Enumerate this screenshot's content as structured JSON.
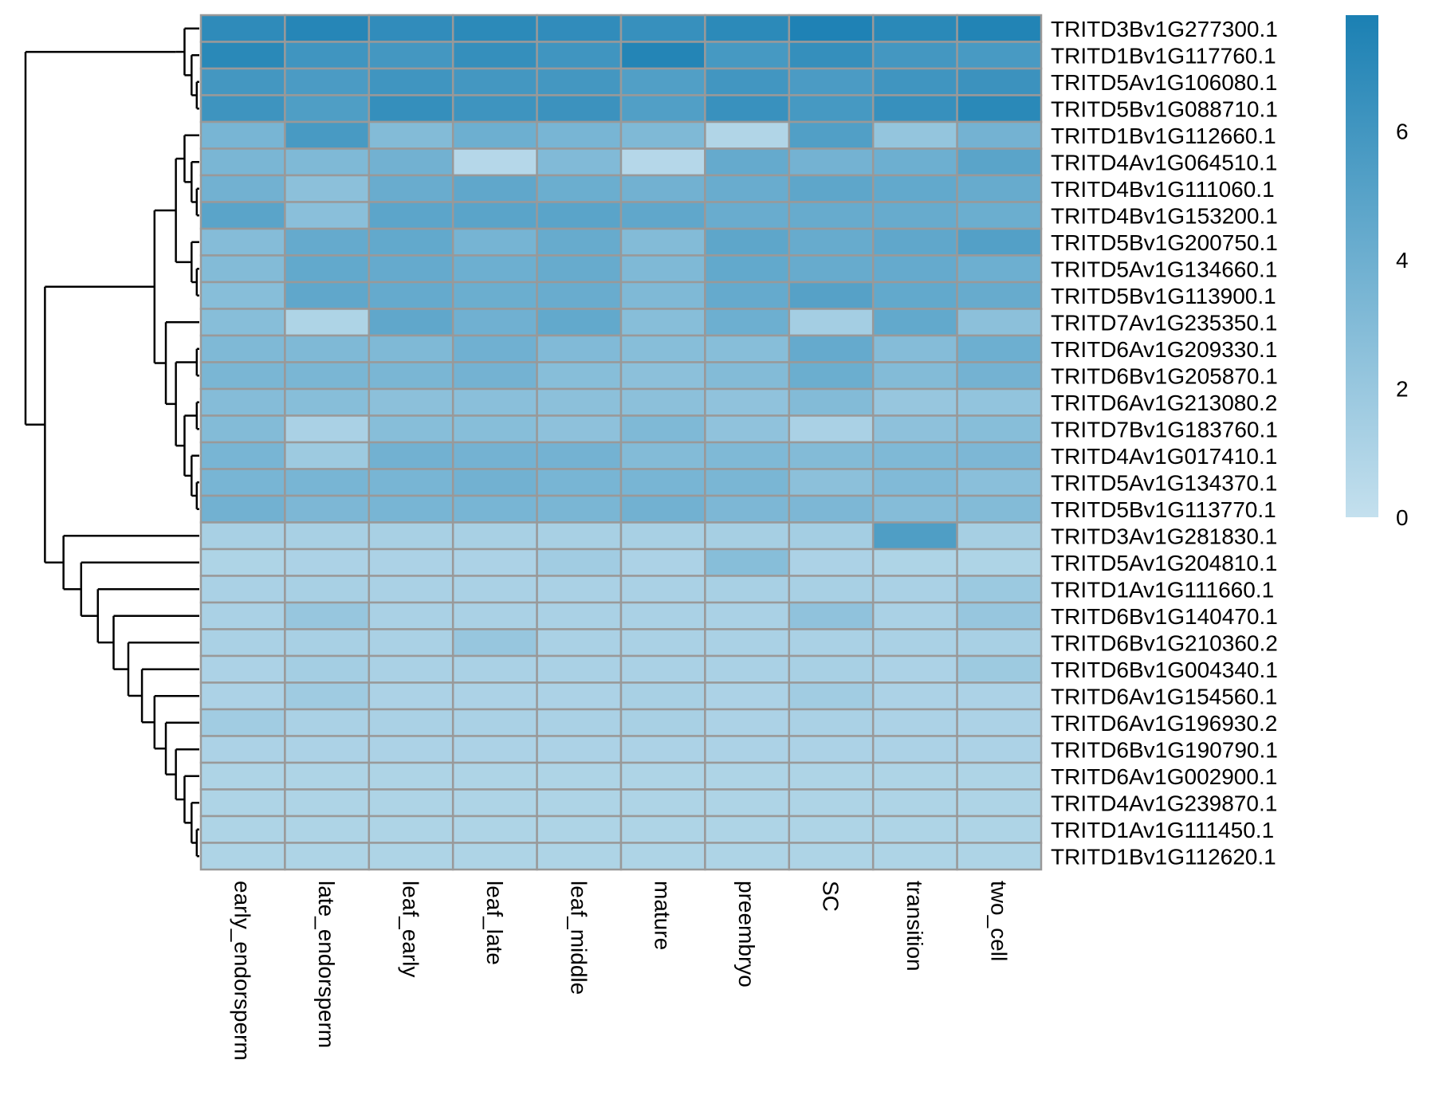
{
  "chart_data": {
    "type": "heatmap",
    "title": "",
    "columns": [
      "early_endorsperm",
      "late_endorsperm",
      "leaf_early",
      "leaf_late",
      "leaf_middle",
      "mature",
      "preembryo",
      "SC",
      "transition",
      "two_cell"
    ],
    "rows": [
      "TRITD3Bv1G277300.1",
      "TRITD1Bv1G117760.1",
      "TRITD5Av1G106080.1",
      "TRITD5Bv1G088710.1",
      "TRITD1Bv1G112660.1",
      "TRITD4Av1G064510.1",
      "TRITD4Bv1G111060.1",
      "TRITD4Bv1G153200.1",
      "TRITD5Bv1G200750.1",
      "TRITD5Av1G134660.1",
      "TRITD5Bv1G113900.1",
      "TRITD7Av1G235350.1",
      "TRITD6Av1G209330.1",
      "TRITD6Bv1G205870.1",
      "TRITD6Av1G213080.2",
      "TRITD7Bv1G183760.1",
      "TRITD4Av1G017410.1",
      "TRITD5Av1G134370.1",
      "TRITD5Bv1G113770.1",
      "TRITD3Av1G281830.1",
      "TRITD5Av1G204810.1",
      "TRITD1Av1G111660.1",
      "TRITD6Bv1G140470.1",
      "TRITD6Bv1G210360.2",
      "TRITD6Bv1G004340.1",
      "TRITD6Av1G154560.1",
      "TRITD6Av1G196930.2",
      "TRITD6Bv1G190790.1",
      "TRITD6Av1G002900.1",
      "TRITD4Av1G239870.1",
      "TRITD1Av1G111450.1",
      "TRITD1Bv1G112620.1"
    ],
    "values": [
      [
        6.9,
        7.3,
        6.8,
        7.0,
        6.8,
        6.5,
        7.0,
        7.6,
        7.1,
        7.5
      ],
      [
        7.1,
        6.1,
        5.9,
        6.6,
        6.1,
        7.4,
        5.8,
        6.6,
        5.9,
        5.7
      ],
      [
        5.9,
        5.6,
        6.1,
        5.9,
        5.9,
        5.3,
        6.0,
        5.6,
        6.1,
        6.3
      ],
      [
        6.2,
        5.4,
        6.6,
        6.2,
        6.3,
        5.3,
        6.4,
        5.8,
        6.5,
        7.1
      ],
      [
        3.5,
        5.7,
        3.0,
        4.0,
        3.5,
        3.2,
        0.9,
        5.3,
        2.2,
        3.7
      ],
      [
        3.4,
        3.2,
        3.8,
        0.7,
        3.1,
        0.7,
        4.4,
        3.7,
        4.0,
        4.9
      ],
      [
        3.8,
        2.6,
        4.2,
        4.6,
        4.1,
        3.8,
        4.2,
        4.7,
        4.5,
        4.3
      ],
      [
        4.9,
        2.7,
        4.8,
        4.9,
        4.9,
        4.6,
        4.2,
        4.3,
        4.3,
        4.1
      ],
      [
        2.9,
        4.4,
        4.5,
        3.6,
        4.3,
        3.0,
        4.7,
        4.3,
        4.6,
        5.2
      ],
      [
        3.0,
        4.5,
        4.4,
        4.0,
        4.3,
        3.2,
        4.5,
        4.3,
        4.4,
        4.0
      ],
      [
        2.8,
        4.6,
        4.4,
        4.1,
        4.2,
        3.2,
        4.4,
        5.1,
        4.5,
        4.3
      ],
      [
        2.8,
        1.0,
        4.6,
        3.9,
        4.5,
        2.8,
        4.0,
        1.5,
        4.5,
        2.6
      ],
      [
        3.2,
        3.2,
        3.2,
        3.9,
        3.1,
        2.8,
        2.8,
        4.4,
        2.9,
        4.0
      ],
      [
        3.4,
        3.4,
        3.4,
        3.7,
        2.8,
        2.6,
        3.0,
        4.1,
        3.0,
        3.7
      ],
      [
        2.9,
        2.8,
        2.6,
        2.7,
        2.6,
        2.6,
        2.4,
        3.0,
        2.1,
        2.3
      ],
      [
        3.0,
        1.2,
        2.8,
        2.8,
        2.5,
        3.2,
        2.4,
        1.2,
        2.5,
        2.8
      ],
      [
        3.5,
        1.8,
        3.8,
        3.7,
        3.7,
        3.0,
        3.2,
        3.0,
        3.2,
        3.3
      ],
      [
        3.5,
        3.5,
        3.5,
        3.8,
        3.5,
        3.5,
        3.4,
        2.6,
        3.1,
        2.7
      ],
      [
        3.8,
        3.3,
        3.5,
        3.5,
        3.4,
        3.8,
        3.3,
        3.3,
        2.9,
        3.0
      ],
      [
        1.3,
        1.3,
        1.3,
        1.3,
        1.3,
        1.3,
        1.4,
        1.5,
        5.4,
        1.4
      ],
      [
        1.0,
        1.1,
        1.1,
        1.1,
        1.6,
        1.1,
        2.8,
        1.1,
        1.0,
        1.0
      ],
      [
        1.2,
        1.3,
        1.2,
        1.2,
        1.2,
        1.2,
        1.3,
        1.3,
        1.2,
        1.9
      ],
      [
        1.2,
        2.1,
        1.2,
        1.2,
        1.2,
        1.2,
        1.2,
        2.4,
        1.2,
        2.1
      ],
      [
        1.2,
        1.3,
        1.2,
        2.1,
        1.2,
        1.2,
        1.2,
        1.2,
        1.2,
        1.3
      ],
      [
        1.1,
        1.5,
        1.2,
        1.2,
        1.2,
        1.2,
        1.2,
        1.3,
        1.1,
        1.8
      ],
      [
        1.1,
        1.7,
        1.1,
        1.1,
        1.1,
        1.3,
        1.1,
        1.6,
        1.1,
        1.1
      ],
      [
        1.6,
        1.2,
        1.2,
        1.2,
        1.2,
        1.3,
        1.1,
        1.2,
        1.1,
        1.1
      ],
      [
        1.1,
        1.1,
        1.1,
        1.1,
        1.1,
        1.1,
        1.1,
        1.1,
        1.1,
        1.1
      ],
      [
        1.0,
        1.0,
        1.0,
        1.0,
        1.0,
        1.0,
        1.0,
        1.0,
        1.0,
        1.0
      ],
      [
        1.0,
        1.0,
        1.0,
        1.0,
        1.0,
        1.0,
        1.0,
        1.0,
        1.0,
        1.0
      ],
      [
        1.0,
        1.0,
        1.0,
        1.0,
        1.0,
        1.0,
        1.0,
        1.0,
        1.0,
        1.0
      ],
      [
        1.0,
        1.0,
        1.0,
        1.0,
        1.0,
        1.0,
        1.0,
        1.0,
        1.0,
        1.0
      ]
    ],
    "color_scale": {
      "min": 0,
      "max": 7.8,
      "low_color": "#c4e0ee",
      "high_color": "#1b80b3",
      "ticks": [
        0,
        2,
        4,
        6
      ]
    },
    "cell_border_color": "#999999",
    "row_dendrogram": {
      "tree": [
        [
          [
            0,
            [
              1,
              [
                2,
                3
              ]
            ]
          ]
        ],
        [
          [
            [
              [
                4,
                [
                  5,
                  [
                    6,
                    7
                  ]
                ]
              ],
              [
                8,
                [
                  9,
                  10
                ]
              ]
            ],
            [
              11,
              [
                [
                  12,
                  13
                ],
                [
                  [
                    14,
                    15
                  ],
                  [
                    16,
                    [
                      17,
                      18
                    ]
                  ]
                ]
              ]
            ]
          ],
          [
            19,
            [
              20,
              [
                21,
                [
                  22,
                  [
                    23,
                    [
                      24,
                      [
                        25,
                        [
                          26,
                          [
                            27,
                            [
                              28,
                              [
                                29,
                                [
                                  30,
                                  31
                                ]
                              ]
                            ]
                          ]
                        ]
                      ]
                    ]
                  ]
                ]
              ]
            ]
          ]
        ]
      ]
    }
  }
}
